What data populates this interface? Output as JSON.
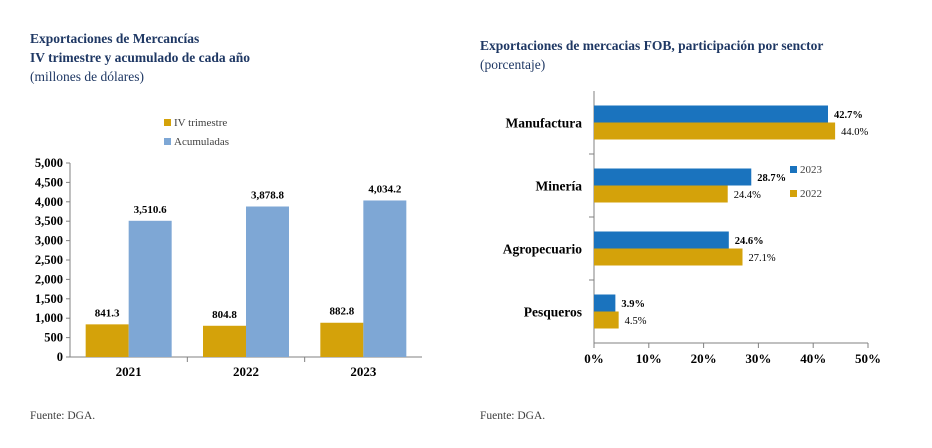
{
  "left": {
    "title_line1": "Exportaciones de Mercancías",
    "title_line2": "IV trimestre y acumulado de cada año",
    "subtitle": "(millones de dólares)",
    "source": "Fuente: DGA."
  },
  "right": {
    "title": "Exportaciones de mercacias FOB, participación por senctor",
    "subtitle": "(porcentaje)",
    "source": "Fuente: DGA."
  },
  "chart_data": [
    {
      "type": "bar",
      "categories": [
        "2021",
        "2022",
        "2023"
      ],
      "series": [
        {
          "name": "IV trimestre",
          "values": [
            841.3,
            804.8,
            882.8
          ],
          "labels": [
            "841.3",
            "804.8",
            "882.8"
          ],
          "color": "#D4A20A"
        },
        {
          "name": "Acumuladas",
          "values": [
            3510.6,
            3878.8,
            4034.2
          ],
          "labels": [
            "3,510.6",
            "3,878.8",
            "4,034.2"
          ],
          "color": "#7EA7D5"
        }
      ],
      "ylim": [
        0,
        5000
      ],
      "yticks": [
        "0",
        "500",
        "1,000",
        "1,500",
        "2,000",
        "2,500",
        "3,000",
        "3,500",
        "4,000",
        "4,500",
        "5,000"
      ],
      "legend": "top-center",
      "grid": false
    },
    {
      "type": "bar",
      "orientation": "horizontal",
      "categories": [
        "Manufactura",
        "Minería",
        "Agropecuario",
        "Pesqueros"
      ],
      "series": [
        {
          "name": "2023",
          "values": [
            42.7,
            28.7,
            24.6,
            3.9
          ],
          "labels": [
            "42.7%",
            "28.7%",
            "24.6%",
            "3.9%"
          ],
          "color": "#1A73BE"
        },
        {
          "name": "2022",
          "values": [
            44.0,
            24.4,
            27.1,
            4.5
          ],
          "labels": [
            "44.0%",
            "24.4%",
            "27.1%",
            "4.5%"
          ],
          "color": "#D4A20A"
        }
      ],
      "xlim": [
        0,
        50
      ],
      "xticks": [
        "0%",
        "10%",
        "20%",
        "30%",
        "40%",
        "50%"
      ],
      "legend": "right",
      "grid": false
    }
  ]
}
